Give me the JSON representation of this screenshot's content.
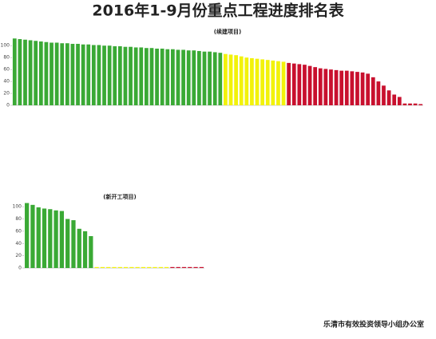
{
  "title": "2016年1-9月份重点工程进度排名表",
  "footer": "乐清市有效投资领导小组办公室",
  "chart_data": [
    {
      "type": "bar",
      "title": "(续建项目)",
      "categories": [
        null,
        null,
        null,
        null,
        null,
        null,
        null,
        null,
        null,
        null,
        null,
        null,
        null,
        null,
        null,
        null,
        null,
        null,
        null,
        null,
        null,
        null,
        null,
        null,
        null,
        null,
        null,
        null,
        null,
        null,
        null,
        null,
        null,
        null,
        null,
        null,
        null,
        null,
        null,
        null,
        null,
        null,
        null,
        null,
        null,
        null,
        null,
        null,
        null,
        null,
        null,
        null,
        null,
        null,
        null,
        null,
        null,
        null,
        null,
        null,
        null,
        null,
        null,
        null,
        null,
        null,
        null,
        null,
        null,
        null,
        null,
        null,
        null,
        null,
        null,
        null,
        null,
        null
      ],
      "values": [
        112,
        111,
        110,
        109,
        108,
        107,
        106,
        105,
        105,
        104,
        104,
        103,
        103,
        102,
        102,
        101,
        101,
        100,
        100,
        99,
        99,
        98,
        98,
        97,
        97,
        96,
        96,
        95,
        95,
        94,
        94,
        93,
        93,
        92,
        92,
        91,
        90,
        90,
        89,
        88,
        86,
        85,
        84,
        82,
        80,
        79,
        78,
        77,
        76,
        75,
        74,
        73,
        71,
        70,
        69,
        68,
        66,
        64,
        62,
        61,
        60,
        59,
        58,
        58,
        57,
        56,
        55,
        53,
        47,
        40,
        33,
        25,
        18,
        14,
        3,
        3,
        3,
        2
      ],
      "colors": [
        "#3aa935",
        "#3aa935",
        "#3aa935",
        "#3aa935",
        "#3aa935",
        "#3aa935",
        "#3aa935",
        "#3aa935",
        "#3aa935",
        "#3aa935",
        "#3aa935",
        "#3aa935",
        "#3aa935",
        "#3aa935",
        "#3aa935",
        "#3aa935",
        "#3aa935",
        "#3aa935",
        "#3aa935",
        "#3aa935",
        "#3aa935",
        "#3aa935",
        "#3aa935",
        "#3aa935",
        "#3aa935",
        "#3aa935",
        "#3aa935",
        "#3aa935",
        "#3aa935",
        "#3aa935",
        "#3aa935",
        "#3aa935",
        "#3aa935",
        "#3aa935",
        "#3aa935",
        "#3aa935",
        "#3aa935",
        "#3aa935",
        "#3aa935",
        "#3aa935",
        "#f2f20a",
        "#f2f20a",
        "#f2f20a",
        "#f2f20a",
        "#f2f20a",
        "#f2f20a",
        "#f2f20a",
        "#f2f20a",
        "#f2f20a",
        "#f2f20a",
        "#f2f20a",
        "#f2f20a",
        "#c8102e",
        "#c8102e",
        "#c8102e",
        "#c8102e",
        "#c8102e",
        "#c8102e",
        "#c8102e",
        "#c8102e",
        "#c8102e",
        "#c8102e",
        "#c8102e",
        "#c8102e",
        "#c8102e",
        "#c8102e",
        "#c8102e",
        "#c8102e",
        "#c8102e",
        "#c8102e",
        "#c8102e",
        "#c8102e",
        "#c8102e",
        "#c8102e",
        "#c8102e",
        "#c8102e",
        "#c8102e",
        "#c8102e"
      ],
      "ylim": [
        0,
        115
      ],
      "yticks": [
        0,
        20,
        40,
        60,
        80,
        100
      ]
    },
    {
      "type": "bar",
      "title": "(新开工项目)",
      "categories": [
        null,
        null,
        null,
        null,
        null,
        null,
        null,
        null,
        null,
        null,
        null,
        null,
        null,
        null,
        null,
        null,
        null,
        null,
        null,
        null,
        null,
        null,
        null,
        null,
        null,
        null,
        null,
        null,
        null,
        null,
        null
      ],
      "values": [
        106,
        103,
        99,
        97,
        96,
        94,
        93,
        80,
        78,
        64,
        60,
        52,
        0,
        0,
        0,
        0,
        0,
        0,
        0,
        0,
        0,
        0,
        0,
        0,
        0,
        0,
        0,
        0,
        0,
        0,
        0
      ],
      "colors": [
        "#3aa935",
        "#3aa935",
        "#3aa935",
        "#3aa935",
        "#3aa935",
        "#3aa935",
        "#3aa935",
        "#3aa935",
        "#3aa935",
        "#3aa935",
        "#3aa935",
        "#3aa935",
        "#f2f20a",
        "#f2f20a",
        "#f2f20a",
        "#f2f20a",
        "#f2f20a",
        "#f2f20a",
        "#f2f20a",
        "#f2f20a",
        "#f2f20a",
        "#f2f20a",
        "#f2f20a",
        "#f2f20a",
        "#f2f20a",
        "#c8102e",
        "#c8102e",
        "#c8102e",
        "#c8102e",
        "#c8102e",
        "#c8102e"
      ],
      "ylim": [
        0,
        108
      ],
      "yticks": [
        0,
        20,
        40,
        60,
        80,
        100
      ]
    }
  ]
}
